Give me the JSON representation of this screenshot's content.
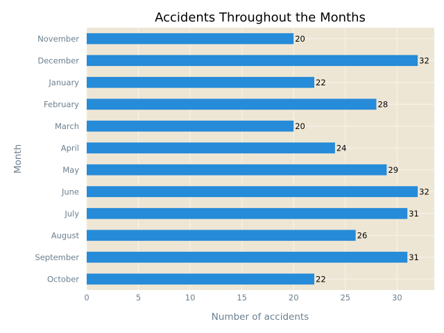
{
  "chart_data": {
    "type": "bar",
    "orientation": "horizontal",
    "title": "Accidents Throughout the Months",
    "xlabel": "Number of accidents",
    "ylabel": "Month",
    "categories": [
      "November",
      "December",
      "January",
      "February",
      "March",
      "April",
      "May",
      "June",
      "July",
      "August",
      "September",
      "October"
    ],
    "values": [
      20,
      32,
      22,
      28,
      20,
      24,
      29,
      32,
      31,
      26,
      31,
      22
    ],
    "xlim": [
      0,
      33.6
    ],
    "xticks": [
      0,
      5,
      10,
      15,
      20,
      25,
      30
    ],
    "grid": true,
    "colors": {
      "bar": "#268bd8",
      "plot_background": "#eee6d4",
      "grid": "#f8f4ec"
    }
  }
}
